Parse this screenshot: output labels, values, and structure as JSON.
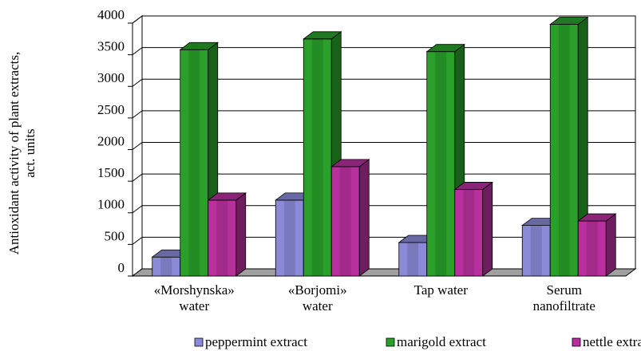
{
  "chart_data": {
    "type": "bar3d",
    "y_label": "Antioxidant activity of plant extracts, act. units",
    "categories": [
      "«Morshynska» water",
      "«Borjomi» water",
      "Tap water",
      "Serum nanofiltrate"
    ],
    "series": [
      {
        "name": "peppermint extract",
        "color": "#8a8ad8",
        "values": [
          300,
          1200,
          530,
          800
        ]
      },
      {
        "name": "marigold extract",
        "color": "#2aa02a",
        "values": [
          3580,
          3750,
          3550,
          3980
        ]
      },
      {
        "name": "nettle extract",
        "color": "#b8309e",
        "values": [
          1200,
          1730,
          1370,
          870
        ]
      }
    ],
    "ylim": [
      0,
      4000
    ],
    "yticks": [
      0,
      500,
      1000,
      1500,
      2000,
      2500,
      3000,
      3500,
      4000
    ],
    "grid": true
  }
}
